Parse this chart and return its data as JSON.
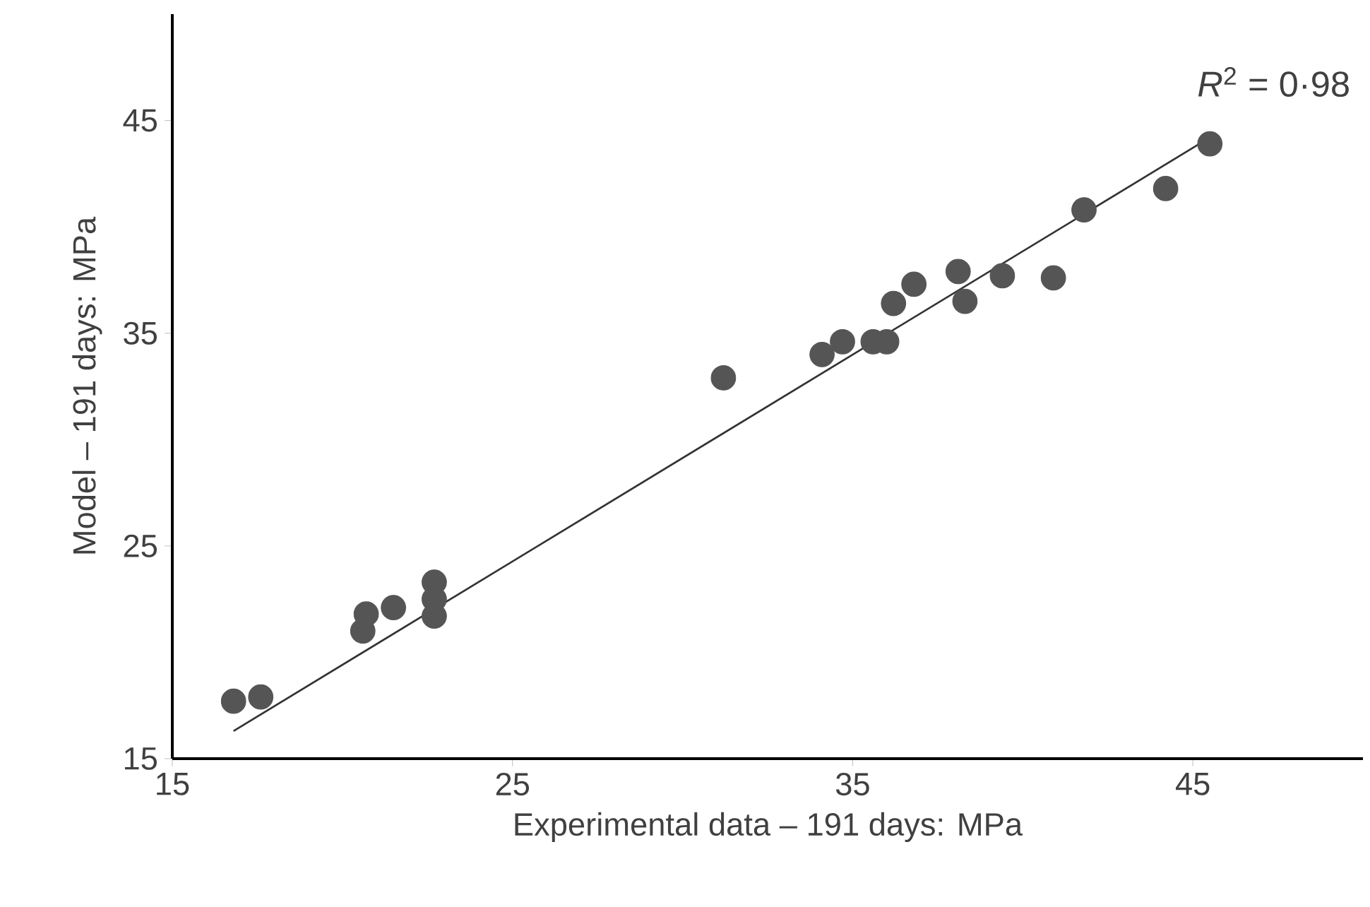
{
  "chart_data": {
    "type": "scatter",
    "xlabel": "Experimental data – 191 days: MPa",
    "ylabel": "Model – 191 days: MPa",
    "xlim": [
      15,
      50
    ],
    "ylim": [
      15,
      50
    ],
    "xticks": [
      15,
      25,
      35,
      45
    ],
    "yticks": [
      15,
      25,
      35,
      45
    ],
    "annotations": [
      "*R*$^{2}$ = 0·98"
    ],
    "series": [
      {
        "color": "#555555",
        "marker": "circle",
        "x": [
          16.8,
          17.6,
          20.6,
          20.7,
          21.5,
          22.7,
          22.7,
          22.7,
          31.2,
          34.1,
          34.7,
          35.6,
          36.0,
          36.2,
          36.8,
          38.1,
          38.3,
          39.4,
          40.9,
          41.8,
          44.2,
          45.5
        ],
        "values": [
          17.7,
          17.9,
          21.0,
          21.8,
          22.1,
          21.7,
          22.5,
          23.3,
          32.9,
          34.0,
          34.6,
          34.6,
          34.6,
          36.4,
          37.3,
          37.9,
          36.5,
          37.7,
          37.6,
          40.8,
          41.8,
          43.9
        ]
      },
      {
        "type": "line",
        "color": "#333333",
        "marker": "none",
        "x": [
          16.8,
          45.5
        ],
        "values": [
          16.3,
          44.2
        ]
      }
    ]
  }
}
